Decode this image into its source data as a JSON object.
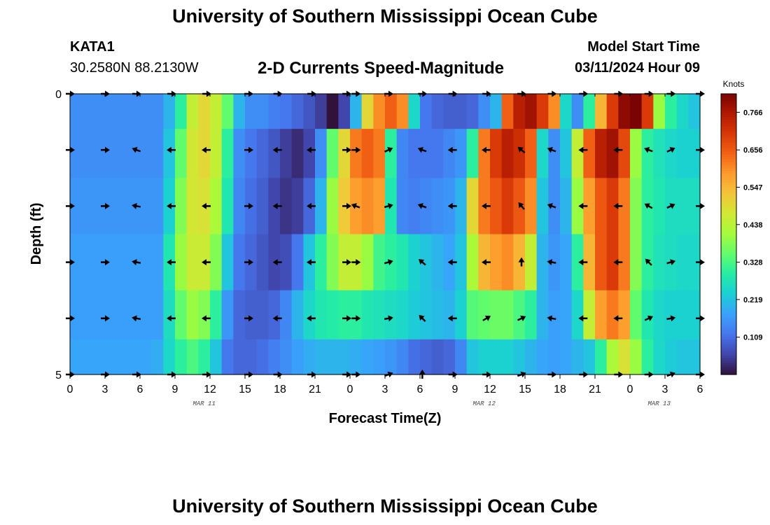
{
  "header": {
    "title": "University of Southern Mississippi Ocean Cube",
    "station_id": "KATA1",
    "coords": "30.2580N  88.2130W",
    "plot_title": "2-D Currents Speed-Magnitude",
    "model_start_label": "Model Start Time",
    "model_start_value": "03/11/2024 Hour 09"
  },
  "footer": {
    "title": "University of Southern Mississippi Ocean Cube"
  },
  "chart_data": {
    "type": "heatmap",
    "title": "2-D Currents Speed-Magnitude",
    "xlabel": "Forecast Time(Z)",
    "ylabel": "Depth (ft)",
    "x_ticks": [
      "0",
      "3",
      "6",
      "9",
      "12",
      "15",
      "18",
      "21",
      "0",
      "3",
      "6",
      "9",
      "12",
      "15",
      "18",
      "21",
      "0",
      "3",
      "6"
    ],
    "y_ticks": [
      "0",
      "5"
    ],
    "date_labels": [
      {
        "text": "MAR 11",
        "hour": 11.5
      },
      {
        "text": "MAR 12",
        "hour": 35.5
      },
      {
        "text": "MAR 13",
        "hour": 50.5
      }
    ],
    "xlim": [
      0,
      54
    ],
    "ylim_depth_ft": [
      0,
      5
    ],
    "colorbar": {
      "label": "Knots",
      "ticks": [
        "0.766",
        "0.656",
        "0.547",
        "0.438",
        "0.328",
        "0.219",
        "0.109"
      ],
      "tick_values": [
        0.766,
        0.656,
        0.547,
        0.438,
        0.328,
        0.219,
        0.109
      ],
      "range": [
        0,
        0.82
      ]
    },
    "colormap": [
      "#30123b",
      "#4145ab",
      "#4675ed",
      "#39a2fc",
      "#1bcfd4",
      "#24eca6",
      "#61fc6c",
      "#a4fc3b",
      "#d1e834",
      "#f3c63a",
      "#fe9b2d",
      "#f36315",
      "#d93806",
      "#b11901",
      "#7a0403"
    ],
    "depth_rows": [
      0.25,
      1.0,
      2.0,
      3.0,
      4.0,
      4.75
    ],
    "speed_rows": [
      [
        0.15,
        0.15,
        0.15,
        0.15,
        0.15,
        0.15,
        0.15,
        0.15,
        0.2,
        0.3,
        0.45,
        0.5,
        0.45,
        0.35,
        0.2,
        0.15,
        0.15,
        0.13,
        0.12,
        0.1,
        0.08,
        0.05,
        0.0,
        0.06,
        0.2,
        0.5,
        0.6,
        0.65,
        0.6,
        0.25,
        0.12,
        0.1,
        0.09,
        0.09,
        0.1,
        0.15,
        0.2,
        0.65,
        0.75,
        0.78,
        0.7,
        0.6,
        0.25,
        0.15,
        0.3,
        0.55,
        0.7,
        0.8,
        0.82,
        0.7,
        0.4,
        0.3,
        0.25,
        0.22
      ],
      [
        0.15,
        0.15,
        0.15,
        0.15,
        0.15,
        0.15,
        0.15,
        0.15,
        0.22,
        0.35,
        0.47,
        0.5,
        0.45,
        0.3,
        0.15,
        0.12,
        0.1,
        0.08,
        0.05,
        0.03,
        0.06,
        0.15,
        0.35,
        0.5,
        0.62,
        0.65,
        0.62,
        0.3,
        0.14,
        0.12,
        0.12,
        0.12,
        0.14,
        0.16,
        0.3,
        0.62,
        0.7,
        0.75,
        0.72,
        0.65,
        0.25,
        0.15,
        0.22,
        0.45,
        0.65,
        0.75,
        0.78,
        0.68,
        0.4,
        0.3,
        0.27,
        0.25,
        0.24,
        0.24
      ],
      [
        0.16,
        0.16,
        0.16,
        0.16,
        0.16,
        0.16,
        0.16,
        0.16,
        0.24,
        0.38,
        0.47,
        0.48,
        0.42,
        0.28,
        0.14,
        0.11,
        0.09,
        0.06,
        0.04,
        0.05,
        0.1,
        0.2,
        0.4,
        0.52,
        0.58,
        0.6,
        0.58,
        0.28,
        0.14,
        0.13,
        0.14,
        0.15,
        0.16,
        0.2,
        0.5,
        0.62,
        0.66,
        0.7,
        0.66,
        0.6,
        0.22,
        0.15,
        0.2,
        0.4,
        0.58,
        0.66,
        0.7,
        0.62,
        0.38,
        0.3,
        0.28,
        0.26,
        0.26,
        0.26
      ],
      [
        0.17,
        0.17,
        0.17,
        0.17,
        0.17,
        0.17,
        0.17,
        0.17,
        0.28,
        0.4,
        0.46,
        0.46,
        0.38,
        0.22,
        0.12,
        0.1,
        0.08,
        0.06,
        0.07,
        0.12,
        0.22,
        0.3,
        0.38,
        0.45,
        0.45,
        0.4,
        0.32,
        0.3,
        0.28,
        0.24,
        0.22,
        0.2,
        0.18,
        0.22,
        0.42,
        0.55,
        0.58,
        0.6,
        0.55,
        0.45,
        0.2,
        0.16,
        0.18,
        0.3,
        0.55,
        0.66,
        0.7,
        0.62,
        0.38,
        0.3,
        0.27,
        0.26,
        0.25,
        0.25
      ],
      [
        0.17,
        0.17,
        0.17,
        0.17,
        0.17,
        0.17,
        0.17,
        0.17,
        0.26,
        0.35,
        0.4,
        0.38,
        0.3,
        0.16,
        0.1,
        0.09,
        0.09,
        0.1,
        0.14,
        0.2,
        0.25,
        0.28,
        0.29,
        0.3,
        0.3,
        0.28,
        0.27,
        0.26,
        0.25,
        0.23,
        0.22,
        0.21,
        0.2,
        0.24,
        0.34,
        0.35,
        0.36,
        0.36,
        0.33,
        0.3,
        0.2,
        0.17,
        0.18,
        0.25,
        0.45,
        0.58,
        0.62,
        0.58,
        0.35,
        0.28,
        0.25,
        0.24,
        0.24,
        0.24
      ],
      [
        0.18,
        0.18,
        0.18,
        0.18,
        0.18,
        0.18,
        0.18,
        0.19,
        0.25,
        0.3,
        0.33,
        0.3,
        0.22,
        0.12,
        0.1,
        0.1,
        0.11,
        0.13,
        0.15,
        0.17,
        0.19,
        0.2,
        0.2,
        0.2,
        0.19,
        0.18,
        0.17,
        0.16,
        0.14,
        0.11,
        0.1,
        0.09,
        0.1,
        0.14,
        0.22,
        0.24,
        0.24,
        0.24,
        0.22,
        0.2,
        0.18,
        0.17,
        0.18,
        0.2,
        0.22,
        0.3,
        0.42,
        0.48,
        0.4,
        0.3,
        0.25,
        0.23,
        0.22,
        0.22
      ]
    ],
    "arrows": {
      "hours": [
        0,
        3,
        5.7,
        8.7,
        11.7,
        15.3,
        17.8,
        20.7,
        23.7,
        24.5,
        27.3,
        30.2,
        32.8,
        35.7,
        38.7,
        41.3,
        44.0,
        47.0,
        49.6,
        51.5,
        54.0
      ],
      "depth_rows": [
        0,
        1,
        2,
        3,
        4,
        5
      ],
      "angles_deg": [
        [
          0,
          0,
          0,
          0,
          0,
          0,
          0,
          0,
          0,
          0,
          0,
          0,
          0,
          0,
          0,
          0,
          0,
          0,
          0,
          0,
          0
        ],
        [
          0,
          0,
          200,
          180,
          180,
          0,
          180,
          180,
          0,
          0,
          -25,
          200,
          180,
          180,
          220,
          200,
          180,
          180,
          200,
          -25,
          0
        ],
        [
          0,
          0,
          190,
          180,
          180,
          0,
          180,
          180,
          0,
          200,
          -15,
          200,
          180,
          180,
          230,
          200,
          180,
          180,
          210,
          -25,
          0
        ],
        [
          0,
          0,
          190,
          180,
          180,
          0,
          180,
          180,
          0,
          0,
          -15,
          220,
          180,
          180,
          270,
          190,
          180,
          180,
          225,
          -15,
          0
        ],
        [
          0,
          0,
          190,
          180,
          180,
          0,
          180,
          180,
          0,
          0,
          -10,
          225,
          180,
          -30,
          -25,
          190,
          180,
          180,
          -25,
          -10,
          0
        ],
        [
          0,
          0,
          0,
          0,
          0,
          0,
          0,
          0,
          0,
          0,
          -20,
          270,
          0,
          0,
          -20,
          0,
          0,
          0,
          0,
          -20,
          0
        ]
      ]
    }
  }
}
